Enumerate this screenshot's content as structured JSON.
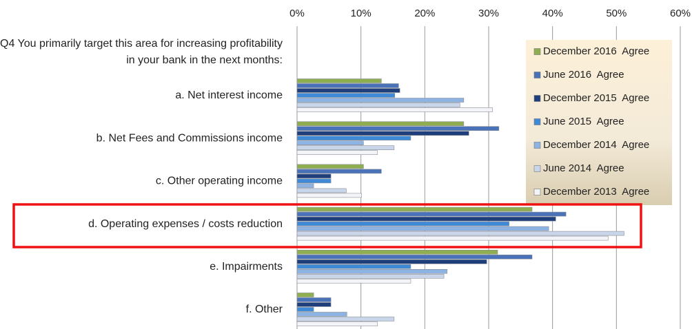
{
  "chart_data": {
    "type": "hbar",
    "title": "Q4 You primarily target this area for increasing profitability in your bank in the next months:",
    "categories": [
      "a. Net interest income",
      "b. Net Fees and Commissions income",
      "c. Other operating income",
      "d. Operating expenses / costs reduction",
      "e. Impairments",
      "f. Other"
    ],
    "series": [
      {
        "name": "December 2016  Agree",
        "color": "#8fae4f",
        "values": [
          13.2,
          26.1,
          10.4,
          36.8,
          31.4,
          2.6
        ]
      },
      {
        "name": "June 2016  Agree",
        "color": "#4a72b8",
        "values": [
          15.9,
          31.6,
          13.2,
          42.1,
          36.8,
          5.3
        ]
      },
      {
        "name": "December 2015  Agree",
        "color": "#1f3f7c",
        "values": [
          16.1,
          26.9,
          5.3,
          40.5,
          29.7,
          5.3
        ]
      },
      {
        "name": "June 2015  Agree",
        "color": "#3f8ad6",
        "values": [
          15.3,
          17.8,
          5.3,
          33.2,
          17.8,
          2.6
        ]
      },
      {
        "name": "December 2014  Agree",
        "color": "#8db3e2",
        "values": [
          26.1,
          10.4,
          2.6,
          39.4,
          23.5,
          7.8
        ]
      },
      {
        "name": "June 2014  Agree",
        "color": "#c9d6ea",
        "values": [
          25.5,
          15.2,
          7.7,
          51.2,
          23.0,
          15.2
        ]
      },
      {
        "name": "December 2013  Agree",
        "color": "#f2f4f8",
        "values": [
          30.6,
          12.6,
          10.1,
          48.7,
          17.8,
          12.6
        ]
      }
    ],
    "xlim": [
      0,
      60
    ],
    "xticks": [
      {
        "value": 0,
        "label": "0%"
      },
      {
        "value": 10,
        "label": "10%"
      },
      {
        "value": 20,
        "label": "20%"
      },
      {
        "value": 30,
        "label": "30%"
      },
      {
        "value": 40,
        "label": "40%"
      },
      {
        "value": 50,
        "label": "50%"
      },
      {
        "value": 60,
        "label": "60%"
      }
    ],
    "grid": true
  }
}
